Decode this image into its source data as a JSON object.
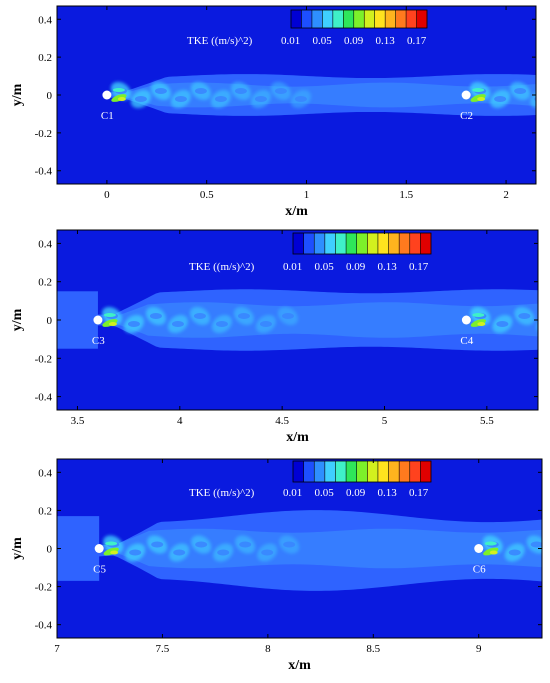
{
  "chart_data": [
    {
      "type": "heatmap",
      "xlabel": "x/m",
      "ylabel": "y/m",
      "xlim": [
        -0.25,
        2.15
      ],
      "ylim": [
        -0.47,
        0.47
      ],
      "xticks": [
        0,
        0.5,
        1,
        1.5,
        2
      ],
      "xtick_labels": [
        "0",
        "0.5",
        "1",
        "1.5",
        "2"
      ],
      "yticks": [
        -0.4,
        -0.2,
        0,
        0.2,
        0.4
      ],
      "ytick_labels": [
        "-0.4",
        "-0.2",
        "0",
        "0.2",
        "0.4"
      ],
      "colorbar": {
        "label": "TKE ((m/s)^2)",
        "tick_values": [
          0.01,
          0.05,
          0.09,
          0.13,
          0.17
        ],
        "tick_labels": [
          "0.01",
          "0.05",
          "0.09",
          "0.13",
          "0.17"
        ]
      },
      "cylinders": [
        {
          "label": "C1",
          "x": 0,
          "y": 0
        },
        {
          "label": "C2",
          "x": 1.8,
          "y": 0
        }
      ]
    },
    {
      "type": "heatmap",
      "xlabel": "x/m",
      "ylabel": "y/m",
      "xlim": [
        3.4,
        5.75
      ],
      "ylim": [
        -0.47,
        0.47
      ],
      "xticks": [
        3.5,
        4,
        4.5,
        5,
        5.5
      ],
      "xtick_labels": [
        "3.5",
        "4",
        "4.5",
        "5",
        "5.5"
      ],
      "yticks": [
        -0.4,
        -0.2,
        0,
        0.2,
        0.4
      ],
      "ytick_labels": [
        "-0.4",
        "-0.2",
        "0",
        "0.2",
        "0.4"
      ],
      "colorbar": {
        "label": "TKE ((m/s)^2)",
        "tick_values": [
          0.01,
          0.05,
          0.09,
          0.13,
          0.17
        ],
        "tick_labels": [
          "0.01",
          "0.05",
          "0.09",
          "0.13",
          "0.17"
        ]
      },
      "cylinders": [
        {
          "label": "C3",
          "x": 3.6,
          "y": 0
        },
        {
          "label": "C4",
          "x": 5.4,
          "y": 0
        }
      ]
    },
    {
      "type": "heatmap",
      "xlabel": "x/m",
      "ylabel": "y/m",
      "xlim": [
        7.0,
        9.3
      ],
      "ylim": [
        -0.47,
        0.47
      ],
      "xticks": [
        7,
        7.5,
        8,
        8.5,
        9
      ],
      "xtick_labels": [
        "7",
        "7.5",
        "8",
        "8.5",
        "9"
      ],
      "yticks": [
        -0.4,
        -0.2,
        0,
        0.2,
        0.4
      ],
      "ytick_labels": [
        "-0.4",
        "-0.2",
        "0",
        "0.2",
        "0.4"
      ],
      "colorbar": {
        "label": "TKE ((m/s)^2)",
        "tick_values": [
          0.01,
          0.05,
          0.09,
          0.13,
          0.17
        ],
        "tick_labels": [
          "0.01",
          "0.05",
          "0.09",
          "0.13",
          "0.17"
        ]
      },
      "cylinders": [
        {
          "label": "C5",
          "x": 7.2,
          "y": 0
        },
        {
          "label": "C6",
          "x": 9.0,
          "y": 0
        }
      ]
    }
  ],
  "colormap": [
    "#0000d4",
    "#1d4fff",
    "#2e8fff",
    "#3fcfff",
    "#3ff0c8",
    "#2ee65a",
    "#7cf02a",
    "#d2f01e",
    "#ffe31e",
    "#ffb41e",
    "#ff7a1e",
    "#ff421e",
    "#e00000"
  ],
  "colors": {
    "background_field": "#0a1adf",
    "wake_low": "#2f63ff",
    "wake_mid": "#3a86ff"
  }
}
